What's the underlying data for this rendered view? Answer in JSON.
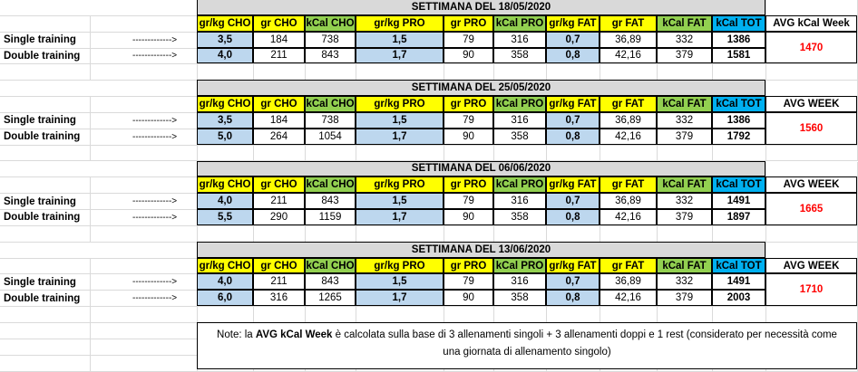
{
  "blocks": [
    {
      "title": "SETTIMANA DEL 18/05/2020",
      "headers": [
        "gr/kg CHO",
        "gr CHO",
        "kCal CHO",
        "gr/kg PRO",
        "gr PRO",
        "kCal PRO",
        "gr/kg FAT",
        "gr FAT",
        "kCal FAT",
        "kCal TOT",
        "AVG kCal Week"
      ],
      "rows": [
        {
          "label": "Single training",
          "arrow": "------------->",
          "values": [
            "3,5",
            "184",
            "738",
            "1,5",
            "79",
            "316",
            "0,7",
            "36,89",
            "332",
            "1386"
          ]
        },
        {
          "label": "Double training",
          "arrow": "------------->",
          "values": [
            "4,0",
            "211",
            "843",
            "1,7",
            "90",
            "358",
            "0,8",
            "42,16",
            "379",
            "1581"
          ]
        }
      ],
      "avg": "1470"
    },
    {
      "title": "SETTIMANA DEL 25/05/2020",
      "headers": [
        "gr/kg CHO",
        "gr CHO",
        "kCal CHO",
        "gr/kg PRO",
        "gr PRO",
        "kCal PRO",
        "gr/kg FAT",
        "gr FAT",
        "kCal FAT",
        "kCal TOT",
        "AVG WEEK"
      ],
      "rows": [
        {
          "label": "Single training",
          "arrow": "------------->",
          "values": [
            "3,5",
            "184",
            "738",
            "1,5",
            "79",
            "316",
            "0,7",
            "36,89",
            "332",
            "1386"
          ]
        },
        {
          "label": "Double training",
          "arrow": "------------->",
          "values": [
            "5,0",
            "264",
            "1054",
            "1,7",
            "90",
            "358",
            "0,8",
            "42,16",
            "379",
            "1792"
          ]
        }
      ],
      "avg": "1560"
    },
    {
      "title": "SETTIMANA DEL 06/06/2020",
      "headers": [
        "gr/kg CHO",
        "gr CHO",
        "kCal CHO",
        "gr/kg PRO",
        "gr PRO",
        "kCal PRO",
        "gr/kg FAT",
        "gr FAT",
        "kCal FAT",
        "kCal TOT",
        "AVG WEEK"
      ],
      "rows": [
        {
          "label": "Single training",
          "arrow": "------------->",
          "values": [
            "4,0",
            "211",
            "843",
            "1,5",
            "79",
            "316",
            "0,7",
            "36,89",
            "332",
            "1491"
          ]
        },
        {
          "label": "Double training",
          "arrow": "------------->",
          "values": [
            "5,5",
            "290",
            "1159",
            "1,7",
            "90",
            "358",
            "0,8",
            "42,16",
            "379",
            "1897"
          ]
        }
      ],
      "avg": "1665"
    },
    {
      "title": "SETTIMANA DEL 13/06/2020",
      "headers": [
        "gr/kg CHO",
        "gr CHO",
        "kCal CHO",
        "gr/kg PRO",
        "gr PRO",
        "kCal PRO",
        "gr/kg FAT",
        "gr FAT",
        "kCal FAT",
        "kCal TOT",
        "AVG WEEK"
      ],
      "rows": [
        {
          "label": "Single training",
          "arrow": "------------->",
          "values": [
            "4,0",
            "211",
            "843",
            "1,5",
            "79",
            "316",
            "0,7",
            "36,89",
            "332",
            "1491"
          ]
        },
        {
          "label": "Double training",
          "arrow": "------------->",
          "values": [
            "6,0",
            "316",
            "1265",
            "1,7",
            "90",
            "358",
            "0,8",
            "42,16",
            "379",
            "2003"
          ]
        }
      ],
      "avg": "1710"
    }
  ],
  "note": [
    "Note: la ",
    "AVG kCal Week",
    " è calcolata sulla base di 3 allenamenti singoli + 3 allenamenti doppi e 1 rest (considerato per necessità come una giornata di allenamento singolo)"
  ]
}
